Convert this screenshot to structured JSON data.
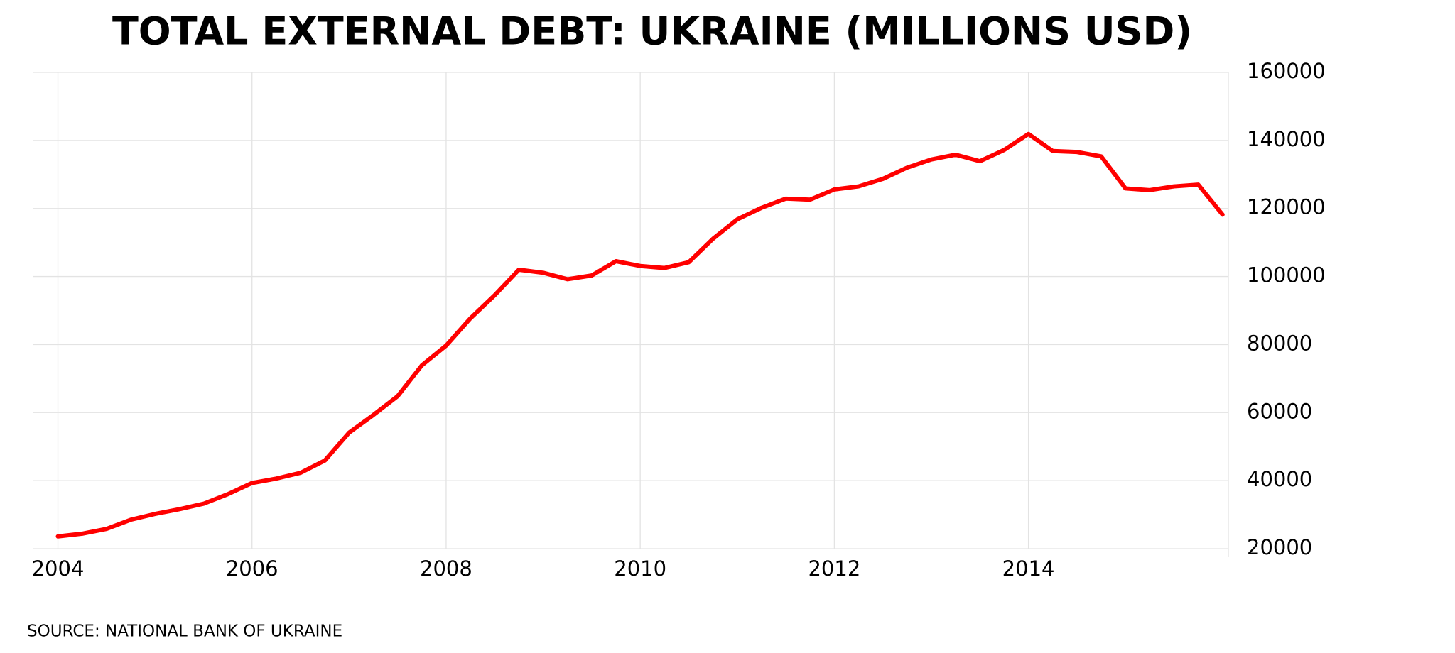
{
  "chart_data": {
    "type": "line",
    "title": "TOTAL EXTERNAL DEBT: UKRAINE (MILLIONS USD)",
    "source": "SOURCE: NATIONAL BANK OF UKRAINE",
    "x": [
      2004,
      2004.25,
      2004.5,
      2004.75,
      2005,
      2005.25,
      2005.5,
      2005.75,
      2006,
      2006.25,
      2006.5,
      2006.75,
      2007,
      2007.25,
      2007.5,
      2007.75,
      2008,
      2008.25,
      2008.5,
      2008.75,
      2009,
      2009.25,
      2009.5,
      2009.75,
      2010,
      2010.25,
      2010.5,
      2010.75,
      2011,
      2011.25,
      2011.5,
      2011.75,
      2012,
      2012.25,
      2012.5,
      2012.75,
      2013,
      2013.25,
      2013.5,
      2013.75,
      2014,
      2014.25,
      2014.5,
      2014.75,
      2015,
      2015.25,
      2015.5,
      2015.75,
      2016
    ],
    "series": [
      {
        "name": "Total external debt",
        "color": "#ff0000",
        "values": [
          23600,
          24400,
          25800,
          28500,
          30200,
          31600,
          33200,
          36000,
          39300,
          40600,
          42300,
          45900,
          54100,
          59300,
          64800,
          73900,
          79700,
          87700,
          94500,
          102000,
          101100,
          99200,
          100300,
          104500,
          103100,
          102500,
          104200,
          111100,
          116800,
          120200,
          122900,
          122600,
          125600,
          126500,
          128700,
          132000,
          134400,
          135800,
          133900,
          137200,
          141900,
          136900,
          136600,
          135300,
          125900,
          125400,
          126500,
          127000,
          118200
        ]
      }
    ],
    "xlim": [
      2003.74,
      2016.06
    ],
    "xticks": [
      2004,
      2006,
      2008,
      2010,
      2012,
      2014
    ],
    "ylim": [
      20000,
      160000
    ],
    "yticks": [
      20000,
      40000,
      60000,
      80000,
      100000,
      120000,
      140000,
      160000
    ],
    "grid": true
  }
}
